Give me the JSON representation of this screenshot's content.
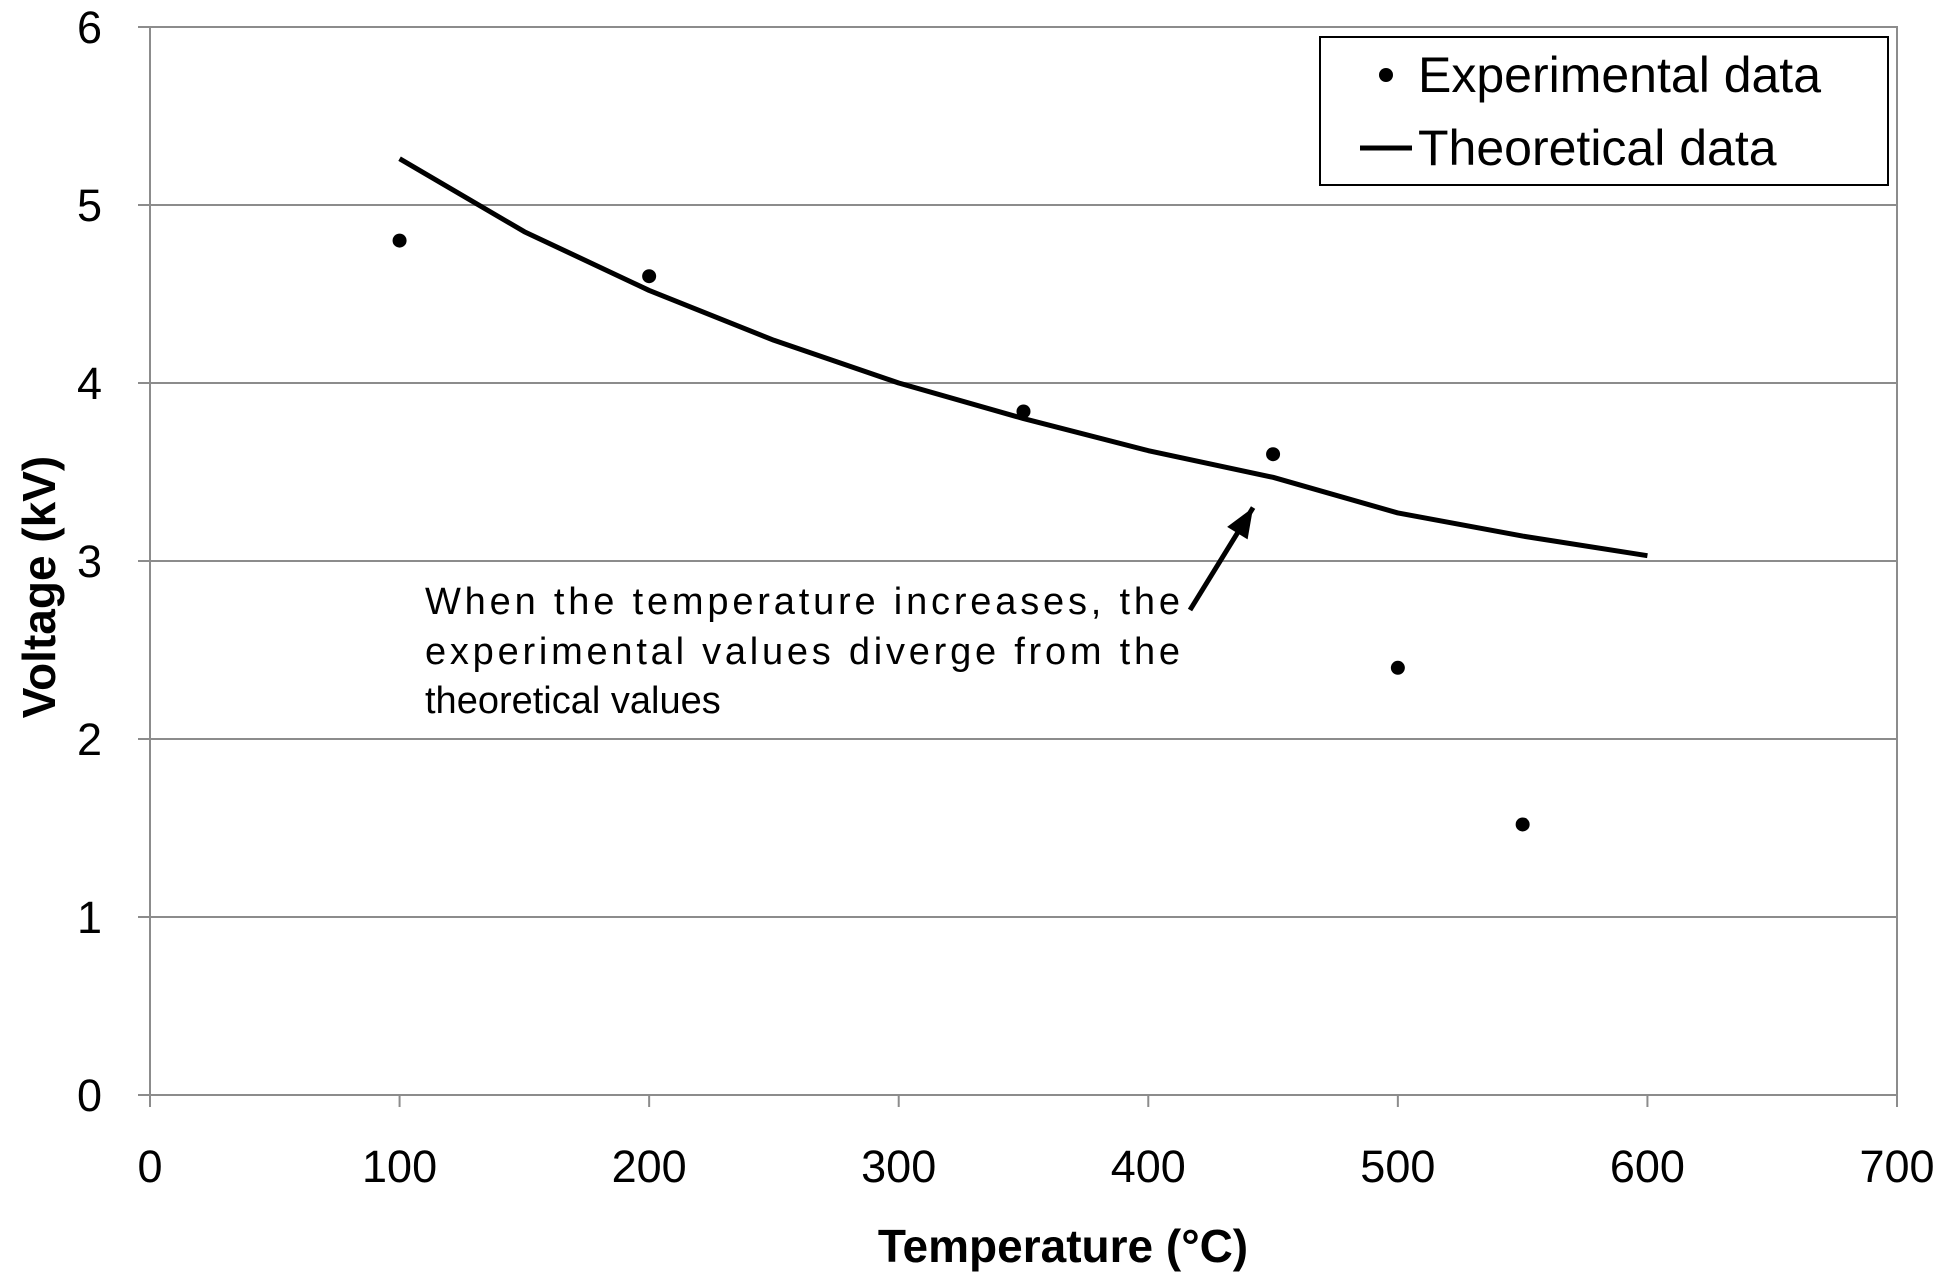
{
  "chart_data": {
    "type": "scatter",
    "title": "",
    "xlabel": "Temperature (°C)",
    "ylabel": "Voltage (kV)",
    "xlim": [
      0,
      700
    ],
    "ylim": [
      0,
      6
    ],
    "x_ticks": [
      0,
      100,
      200,
      300,
      400,
      500,
      600,
      700
    ],
    "y_ticks": [
      0,
      1,
      2,
      3,
      4,
      5,
      6
    ],
    "grid": "horizontal",
    "legend_position": "top-right",
    "series": [
      {
        "name": "Experimental data",
        "type": "scatter",
        "x": [
          100,
          200,
          350,
          450,
          500,
          550
        ],
        "y": [
          4.8,
          4.6,
          3.84,
          3.6,
          2.4,
          1.52
        ]
      },
      {
        "name": "Theoretical data",
        "type": "line",
        "x": [
          100,
          150,
          200,
          250,
          300,
          350,
          400,
          450,
          500,
          550,
          600
        ],
        "y": [
          5.26,
          4.85,
          4.52,
          4.24,
          4.0,
          3.8,
          3.62,
          3.47,
          3.27,
          3.14,
          3.03
        ]
      }
    ],
    "annotations": [
      {
        "lines": [
          "When the temperature increases, the",
          "experimental values diverge from the",
          "theoretical values"
        ],
        "arrow_to": {
          "x": 442,
          "y": 3.3
        }
      }
    ],
    "colors": {
      "marks": "#000000",
      "grid": "#8c8c8c",
      "axis": "#8c8c8c"
    }
  }
}
